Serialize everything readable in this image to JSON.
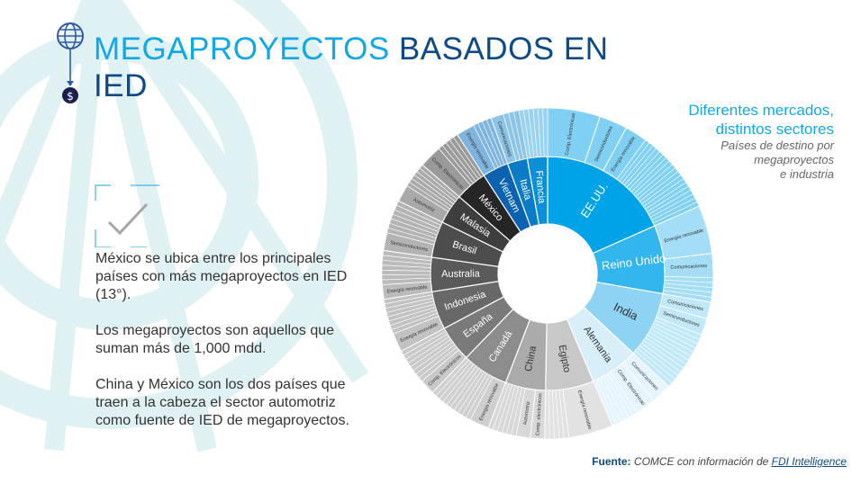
{
  "title": {
    "highlight": "MEGAPROYECTOS",
    "rest": " BASADOS EN",
    "line2": "IED"
  },
  "body": {
    "p1": "México se ubica entre los principales países con más megaproyectos en IED (13°).",
    "p2": "Los megaproyectos son aquellos que suman más de 1,000 mdd.",
    "p3": "China y México son los dos países que traen a la cabeza el sector automotriz como fuente de IED de megaproyectos."
  },
  "side": {
    "title1": "Diferentes mercados,",
    "title2": "distintos sectores",
    "sub1": "Países de destino por",
    "sub2": "megaproyectos",
    "sub3": "e industria"
  },
  "source": {
    "label": "Fuente:",
    "text": " COMCE con información de ",
    "link": "FDI Intelligence"
  },
  "icons": {
    "globe": "globe-dollar-icon",
    "check": "checkmark-icon"
  },
  "chart_data": {
    "type": "sunburst",
    "title": "Países de destino por megaproyectos e industria",
    "units": "relative share of megaprojects (approx.)",
    "countries": [
      {
        "name": "EE.UU.",
        "value": 66,
        "color": "#00a3e8",
        "outer": "#7fd0f3",
        "sectors": [
          {
            "label": "Comp. Electrónicas",
            "share": 0.28
          },
          {
            "label": "Semiconductores",
            "share": 0.15
          },
          {
            "label": "Energía renovable",
            "share": 0.12
          }
        ]
      },
      {
        "name": "Reino Unido",
        "value": 34,
        "color": "#33b5ee",
        "outer": "#a3ddf6",
        "sectors": [
          {
            "label": "Energía renovable",
            "share": 0.5
          },
          {
            "label": "Comunicaciones",
            "share": 0.25
          }
        ]
      },
      {
        "name": "India",
        "value": 33,
        "color": "#8ed3f3",
        "outer": "#c1e8f9",
        "sectors": [
          {
            "label": "Comunicaciones",
            "share": 0.18
          },
          {
            "label": "Semiconductores",
            "share": 0.18
          }
        ]
      },
      {
        "name": "Alemania",
        "value": 24,
        "color": "#d8eef9",
        "outer": "#e6f4fb",
        "sectors": [
          {
            "label": "Comunicaciones",
            "share": 0.3
          },
          {
            "label": "Comp. Electrónicas",
            "share": 0.3
          }
        ]
      },
      {
        "name": "Egipto",
        "value": 24,
        "color": "#c8c8c8",
        "outer": "#e2e2e2",
        "sectors": [
          {
            "label": "Energía renovable",
            "share": 0.65
          }
        ]
      },
      {
        "name": "China",
        "value": 20,
        "color": "#ababab",
        "outer": "#d8d8d8",
        "sectors": [
          {
            "label": "Comp. electrónicos",
            "share": 0.25
          },
          {
            "label": "Automotriz",
            "share": 0.25
          }
        ]
      },
      {
        "name": "Canadá",
        "value": 23,
        "color": "#8c8c8c",
        "outer": "#cfcfcf",
        "sectors": [
          {
            "label": "Energía renovable",
            "share": 0.3
          }
        ]
      },
      {
        "name": "España",
        "value": 18,
        "color": "#7a7a7a",
        "outer": "#c9c9c9",
        "sectors": [
          {
            "label": "Comp. Electrónicos",
            "share": 0.3
          }
        ]
      },
      {
        "name": "Indonesia",
        "value": 19,
        "color": "#686868",
        "outer": "#c2c2c2",
        "sectors": [
          {
            "label": "Energía renovable",
            "share": 0.35
          }
        ]
      },
      {
        "name": "Australia",
        "value": 17,
        "color": "#5a5a5a",
        "outer": "#bbbbbb",
        "sectors": [
          {
            "label": "Energía renovable",
            "share": 0.3
          }
        ]
      },
      {
        "name": "Brasil",
        "value": 18,
        "color": "#4d4d4d",
        "outer": "#b3b3b3",
        "sectors": [
          {
            "label": "Semiconductores",
            "share": 0.35
          }
        ]
      },
      {
        "name": "Malasia",
        "value": 15,
        "color": "#3e3e3e",
        "outer": "#a9a9a9",
        "sectors": [
          {
            "label": "Automotriz",
            "share": 0.4
          }
        ]
      },
      {
        "name": "México",
        "value": 16,
        "color": "#262626",
        "outer": "#9a9a9a",
        "sectors": [
          {
            "label": "Comp. Electrónicos",
            "share": 0.5
          }
        ]
      },
      {
        "name": "Vietnam",
        "value": 13,
        "color": "#0a62b0",
        "outer": "#7fb4de",
        "sectors": [
          {
            "label": "Energía renovable",
            "share": 0.5
          }
        ]
      },
      {
        "name": "Italia",
        "value": 10,
        "color": "#0a7cc7",
        "outer": "#8cc4e8",
        "sectors": [
          {
            "label": "Comunicaciones",
            "share": 0.45
          }
        ]
      },
      {
        "name": "Francia",
        "value": 10,
        "color": "#0b90d8",
        "outer": "#9ad3f2",
        "sectors": []
      }
    ]
  }
}
